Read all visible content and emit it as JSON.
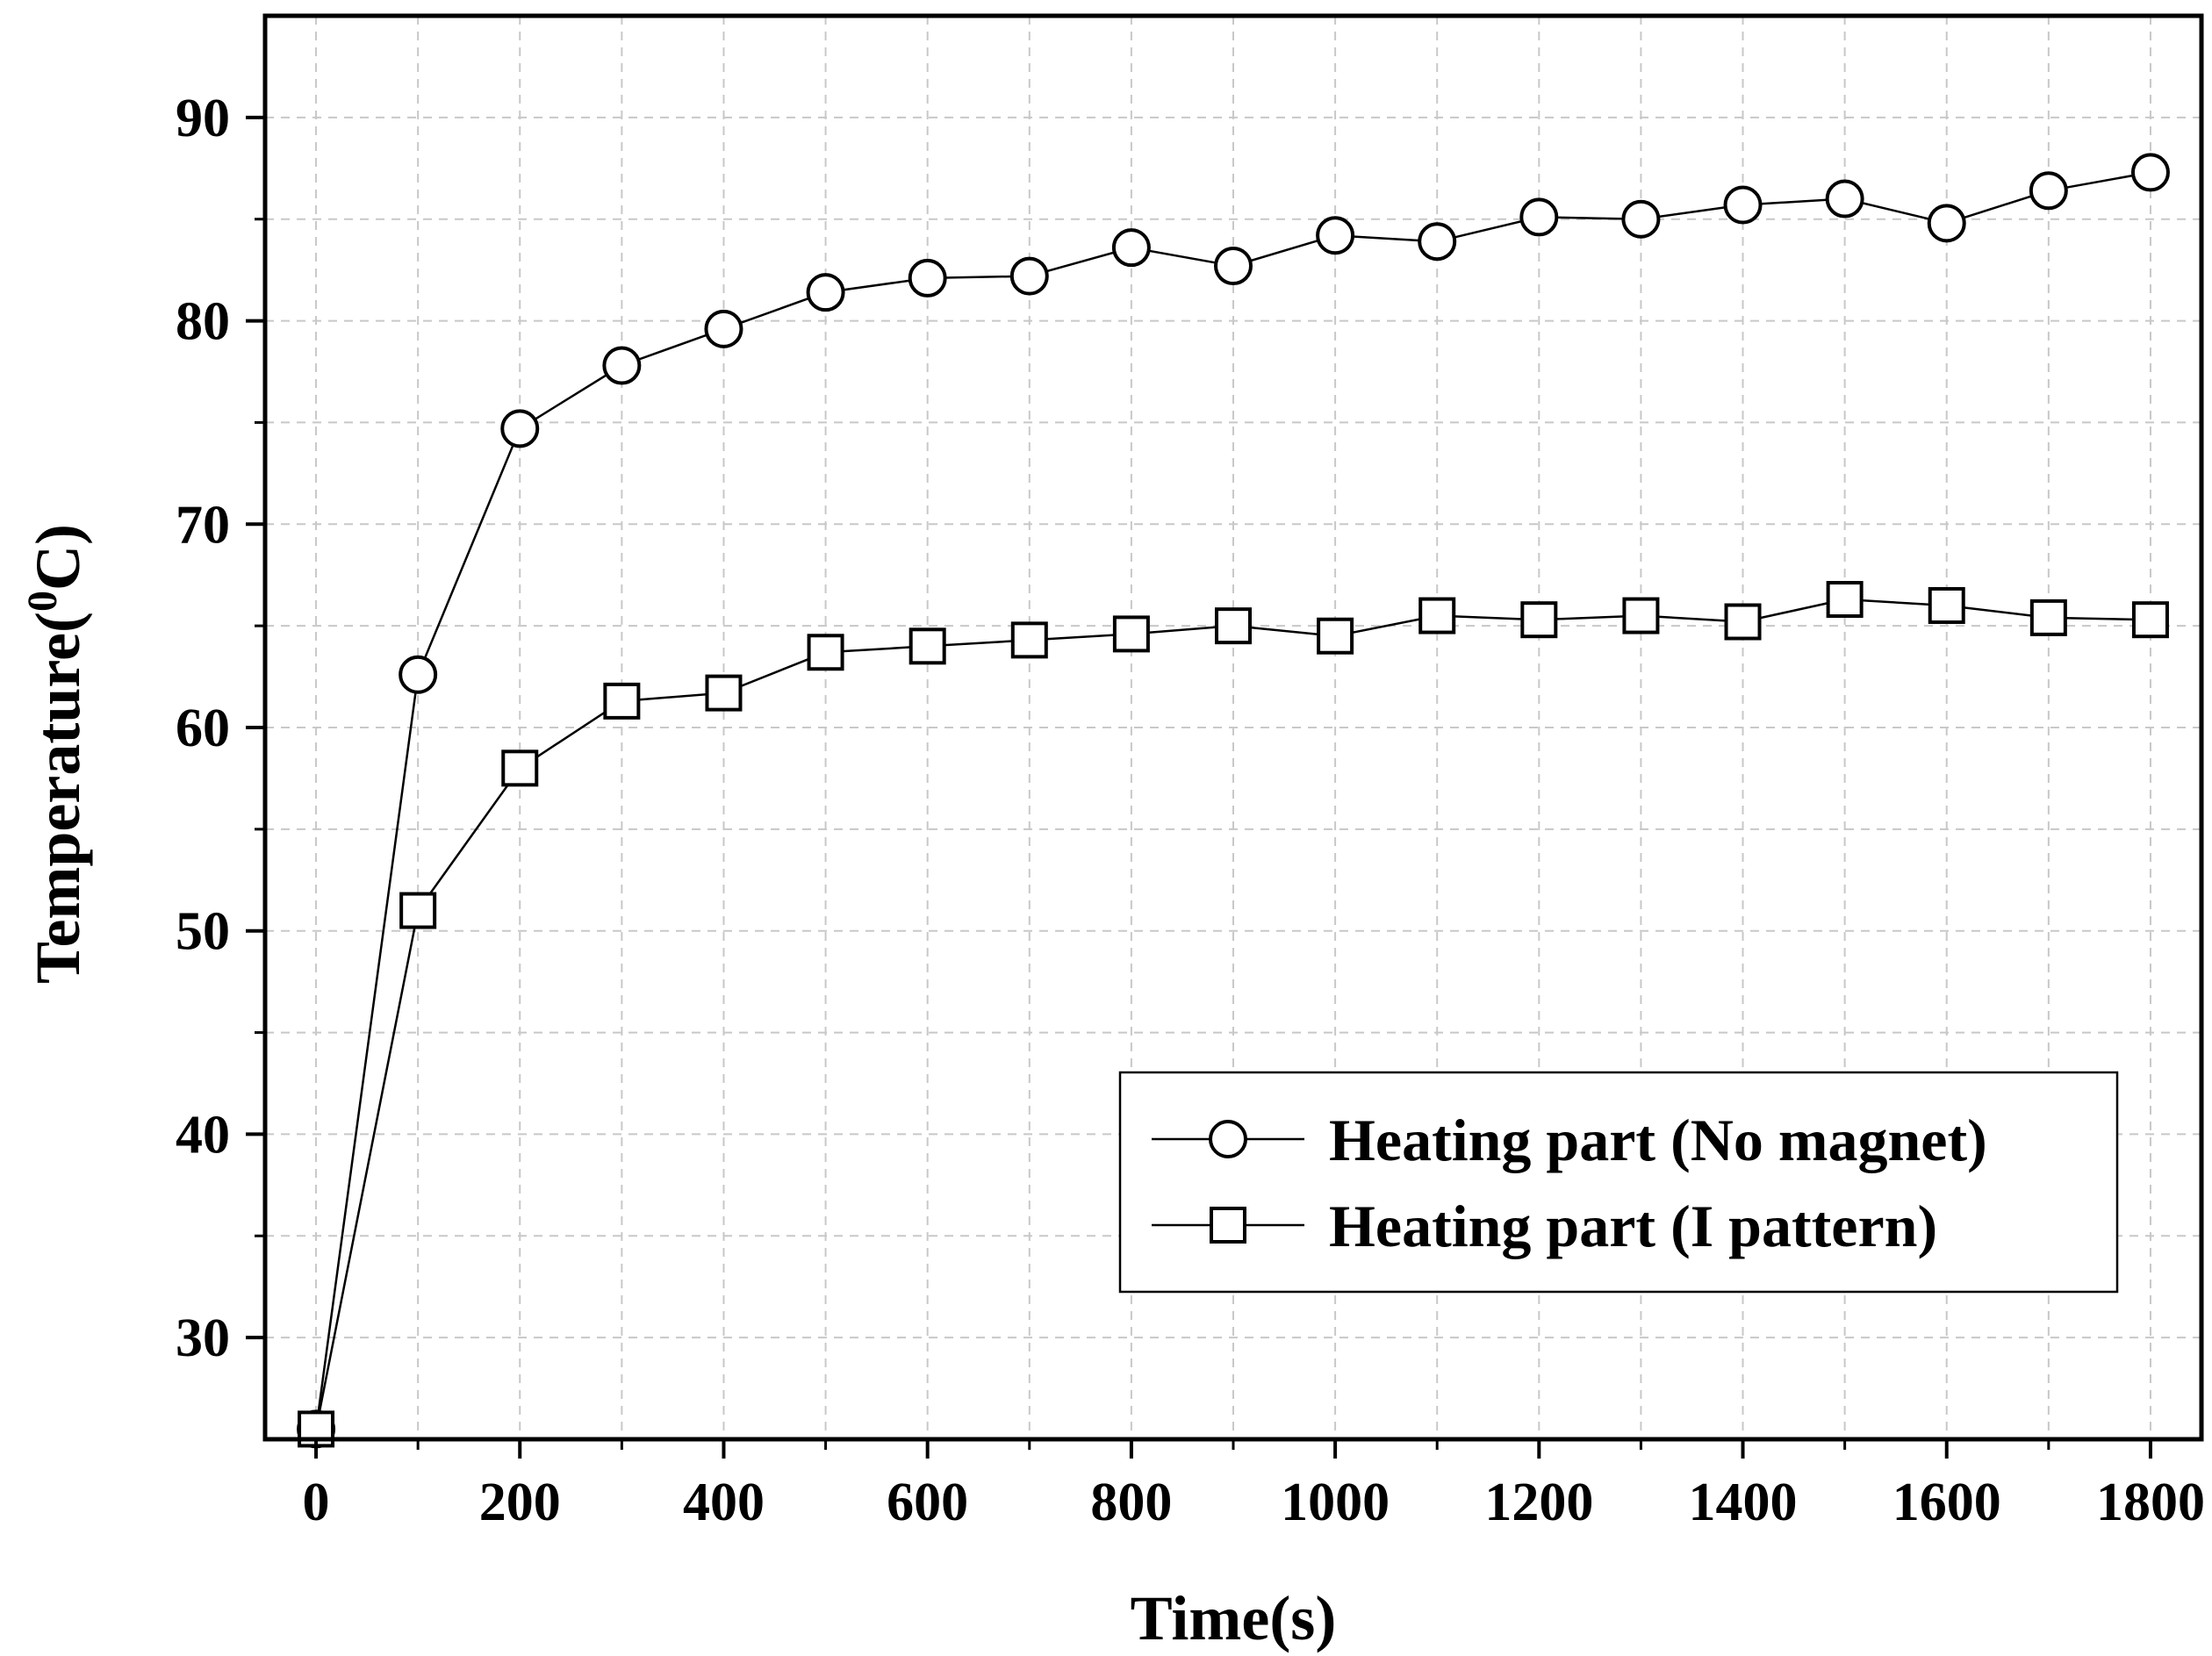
{
  "chart_data": {
    "type": "line",
    "xlabel": "Time(s)",
    "ylabel": {
      "prefix": "Temperature(",
      "superscript": "0",
      "suffix": "C)"
    },
    "xlim": [
      -50,
      1850
    ],
    "ylim": [
      25,
      95
    ],
    "xticks": [
      0,
      200,
      400,
      600,
      800,
      1000,
      1200,
      1400,
      1600,
      1800
    ],
    "xtick_labels": [
      "0",
      "200",
      "400",
      "600",
      "800",
      "1000",
      "1200",
      "1400",
      "1600",
      "1800"
    ],
    "yticks": [
      30,
      40,
      50,
      60,
      70,
      80,
      90
    ],
    "ytick_labels": [
      "30",
      "40",
      "50",
      "60",
      "70",
      "80",
      "90"
    ],
    "grid": true,
    "legend_position": "bottom-right",
    "series": [
      {
        "name": "Heating part (No magnet)",
        "marker": "circle",
        "color": "#000000",
        "x": [
          0,
          100,
          200,
          300,
          400,
          500,
          600,
          700,
          800,
          900,
          1000,
          1100,
          1200,
          1300,
          1400,
          1500,
          1600,
          1700,
          1800
        ],
        "y": [
          25.5,
          62.6,
          74.7,
          77.8,
          79.6,
          81.4,
          82.1,
          82.2,
          83.6,
          82.7,
          84.2,
          83.9,
          85.1,
          85.0,
          85.7,
          86.0,
          84.8,
          86.4,
          87.3
        ]
      },
      {
        "name": "Heating part (I pattern)",
        "marker": "square",
        "color": "#000000",
        "x": [
          0,
          100,
          200,
          300,
          400,
          500,
          600,
          700,
          800,
          900,
          1000,
          1100,
          1200,
          1300,
          1400,
          1500,
          1600,
          1700,
          1800
        ],
        "y": [
          25.5,
          51.0,
          58.0,
          61.3,
          61.7,
          63.7,
          64.0,
          64.3,
          64.6,
          65.0,
          64.5,
          65.5,
          65.3,
          65.5,
          65.2,
          66.3,
          66.0,
          65.4,
          65.3
        ]
      }
    ]
  }
}
